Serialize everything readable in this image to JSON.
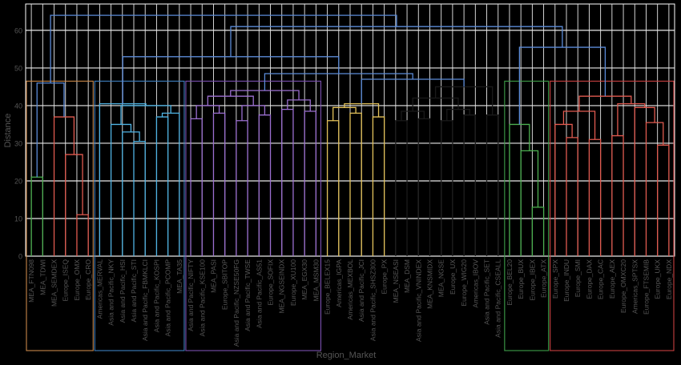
{
  "chart_data": {
    "type": "dendrogram",
    "ylabel": "Distance",
    "xlabel": "Region_Market",
    "ylim": [
      0,
      67
    ],
    "y_ticks": [
      0,
      10,
      20,
      30,
      40,
      50,
      60
    ],
    "grid": true,
    "leaves": [
      "MEA_FTN098",
      "MEA_TDWI",
      "MEA_SEMDEX",
      "Europe_ISEQ",
      "Europe_OMX",
      "Europe_CRO",
      "Americas_MERVAL",
      "Asia and Pacific_NKY",
      "Asia and Pacific_HSI",
      "Asia and Pacific_STI",
      "Asia and Pacific_FBMKLCI",
      "Asia and Pacific_KOSPI",
      "Asia and Pacific_PCOMP",
      "MEA_TA35",
      "Asia and Pacific_NIFTY",
      "Asia and Pacific_KSE100",
      "MEA_PASI",
      "Europe_SBITOP",
      "Asia and Pacific_NZSE50FG",
      "Asia and Pacific_TWSE",
      "Asia and Pacific_AS51",
      "Europe_SOFIX",
      "MEA_NGSEINDX",
      "Europe_XU100",
      "MEA_EGX30",
      "MEA_MSM30",
      "Europe_BELEX15",
      "Americas_IGPA",
      "Americas_MEXBOL",
      "Asia and Pacific_JCI",
      "Asia and Pacific_SHSZ300",
      "Europe_PX",
      "MEA_NSEASI",
      "MEA_DSM",
      "Asia and Pacific_VNINDEX",
      "MEA_KNSMIDX",
      "MEA_NGSE",
      "Europe_UX",
      "Europe_WIG20",
      "Americas_IBOV",
      "Asia and Pacific_SET",
      "Asia and Pacific_CSEALL",
      "Europe_BEL20",
      "Europe_BUX",
      "Europe_IBEX",
      "Europe_ATX",
      "Europe_SPX",
      "Europe_INDU",
      "Europe_SMI",
      "Europe_DAX",
      "Europe_CAC",
      "Europe_AEX",
      "Europe_OMXC20",
      "Americas_SPTSX",
      "Europe_FTSEMIB",
      "Europe_UKX",
      "Europe_NDX"
    ],
    "visible_leaf_labels": [
      "MEA_FTN098",
      "MEA_TDWI",
      "MEA_SEMDEX",
      "Europe_ISEQ",
      "Europe_OMX",
      "Europe_CRO",
      "Americas_MERVAL",
      "Asia and Pacific_NKY",
      "Asia and Pacific_HSI",
      "Asia and Pacific_STI",
      "Asia and Pacific_FBMKLCI",
      "Asia and Pacific_KOSPI",
      "Asia and Pacific_PCOMP",
      "MEA_TA35",
      "Asia and Pacific_NIFTY",
      "Asia and Pacific_KSE100",
      "MEA_PASI",
      "Europe_SBITOP",
      "Asia and Pacific_NZSE50FG",
      "Asia and Pacific_TWSE",
      "Asia and Pacific_AS51",
      "Europe_SOFIX",
      "MEA_NGSEINDX",
      "Europe_XU100",
      "MEA_EGX30",
      "MEA_MSM30",
      "Europe_BELEX15",
      "Americas_IGPA",
      "Americas_MEXBOL",
      "Asia and Pacific_JCI",
      "Asia and Pacific_SHSZ300",
      "Europe_PX",
      "MEA_NSEASI",
      "MEA_DSM",
      "Asia and Pacific_VNINDEX",
      "MEA_KNSMIDX",
      "MEA_NGSE",
      "Europe_UX",
      "Europe_WIG20",
      "Americas_IBOV",
      "Asia and Pacific_SET",
      "Asia and Pacific_CSEALL",
      "Europe_BEL20",
      "Europe_BUX",
      "Europe_IBEX",
      "Europe_ATX",
      "Europe_SPX",
      "Europe_INDU",
      "Europe_SMI",
      "Europe_DAX",
      "Europe_CAC",
      "Europe_AEX",
      "Europe_OMXC20",
      "Americas_SPTSX",
      "Europe_FTSEMIB",
      "Europe_UKX",
      "Europe_NDX"
    ],
    "merges": [
      {
        "a": 1,
        "b": 2,
        "h": 21
      },
      {
        "a": 5,
        "b": 6,
        "h": 11
      },
      {
        "a": 4,
        "b": "m2",
        "h": 27
      },
      {
        "a": 3,
        "b": "m3",
        "h": 37
      },
      {
        "a": "m1",
        "b": "m4",
        "h": 46
      },
      {
        "a": 10,
        "b": 11,
        "h": 30.5
      },
      {
        "a": 9,
        "b": "m6",
        "h": 33
      },
      {
        "a": 8,
        "b": "m7",
        "h": 35
      },
      {
        "a": 12,
        "b": 13,
        "h": 37
      },
      {
        "a": 14,
        "b": "m9",
        "h": 38
      },
      {
        "a": "m8",
        "b": "m10",
        "h": 40
      },
      {
        "a": 7,
        "b": "m11",
        "h": 40.5
      },
      {
        "a": 15,
        "b": 16,
        "h": 36.5
      },
      {
        "a": 17,
        "b": 18,
        "h": 38
      },
      {
        "a": "m13",
        "b": "m14",
        "h": 40
      },
      {
        "a": 19,
        "b": 20,
        "h": 36
      },
      {
        "a": 21,
        "b": 22,
        "h": 37.5
      },
      {
        "a": "m16",
        "b": "m17",
        "h": 40
      },
      {
        "a": "m15",
        "b": "m18",
        "h": 42.5
      },
      {
        "a": 23,
        "b": 24,
        "h": 39
      },
      {
        "a": 25,
        "b": 26,
        "h": 38.5
      },
      {
        "a": "m20",
        "b": "m21",
        "h": 41.5
      },
      {
        "a": "m19",
        "b": "m22",
        "h": 44
      },
      {
        "a": 27,
        "b": 28,
        "h": 36
      },
      {
        "a": 29,
        "b": 30,
        "h": 38
      },
      {
        "a": "m24",
        "b": "m25",
        "h": 39.5
      },
      {
        "a": 31,
        "b": 32,
        "h": 37
      },
      {
        "a": "m26",
        "b": "m27",
        "h": 40.5
      },
      {
        "a": 33,
        "b": 34,
        "h": 36
      },
      {
        "a": 35,
        "b": 36,
        "h": 36.5
      },
      {
        "a": "m29",
        "b": "m30",
        "h": 38.5
      },
      {
        "a": 37,
        "b": 38,
        "h": 36
      },
      {
        "a": 39,
        "b": 40,
        "h": 37.5
      },
      {
        "a": "m32",
        "b": "m33",
        "h": 39
      },
      {
        "a": "m31",
        "b": "m34",
        "h": 42
      },
      {
        "a": 41,
        "b": 42,
        "h": 37.5
      },
      {
        "a": "m35",
        "b": "m36",
        "h": 45
      },
      {
        "a": "m28",
        "b": "m37",
        "h": 47
      },
      {
        "a": "m23",
        "b": "m38",
        "h": 48.5
      },
      {
        "a": "m12",
        "b": "m39",
        "h": 53
      },
      {
        "a": 45,
        "b": 46,
        "h": 13
      },
      {
        "a": 44,
        "b": "m41",
        "h": 28
      },
      {
        "a": 43,
        "b": "m42",
        "h": 35
      },
      {
        "a": 48,
        "b": 49,
        "h": 31.5
      },
      {
        "a": 47,
        "b": "m44",
        "h": 35
      },
      {
        "a": 50,
        "b": 51,
        "h": 31
      },
      {
        "a": "m45",
        "b": "m46",
        "h": 38.5
      },
      {
        "a": 52,
        "b": 53,
        "h": 32
      },
      {
        "a": 56,
        "b": 57,
        "h": 29.5
      },
      {
        "a": 55,
        "b": "m49",
        "h": 35.5
      },
      {
        "a": 54,
        "b": "m50",
        "h": 39.5
      },
      {
        "a": "m48",
        "b": "m51",
        "h": 40.5
      },
      {
        "a": "m47",
        "b": "m52",
        "h": 42.5
      },
      {
        "a": "m43",
        "b": "m53",
        "h": 55.5
      },
      {
        "a": "m40",
        "b": "m54",
        "h": 61
      },
      {
        "a": "m5",
        "b": "m55",
        "h": 64
      }
    ],
    "clusters": [
      {
        "leaves": [
          1,
          2
        ],
        "color": "#4caf50"
      },
      {
        "leaves": [
          3,
          6
        ],
        "color": "#e05a4f"
      },
      {
        "leaves": [
          7,
          14
        ],
        "color": "#4fb3e3"
      },
      {
        "leaves": [
          15,
          26
        ],
        "color": "#9b6fd0"
      },
      {
        "leaves": [
          27,
          32
        ],
        "color": "#e2c15a"
      },
      {
        "leaves": [
          33,
          42
        ],
        "color": "#1a1a1a"
      },
      {
        "leaves": [
          43,
          46
        ],
        "color": "#4caf50"
      },
      {
        "leaves": [
          47,
          57
        ],
        "color": "#e05a4f"
      }
    ],
    "trunk_color": "#5b8bd8",
    "cluster_boxes": [
      {
        "from": 1,
        "to": 6,
        "color": "#c8874a"
      },
      {
        "from": 7,
        "to": 14,
        "color": "#3f7fbf"
      },
      {
        "from": 15,
        "to": 26,
        "color": "#7a4fb0"
      },
      {
        "from": 43,
        "to": 46,
        "color": "#3f9f4a"
      },
      {
        "from": 47,
        "to": 57,
        "color": "#c94040"
      }
    ]
  }
}
